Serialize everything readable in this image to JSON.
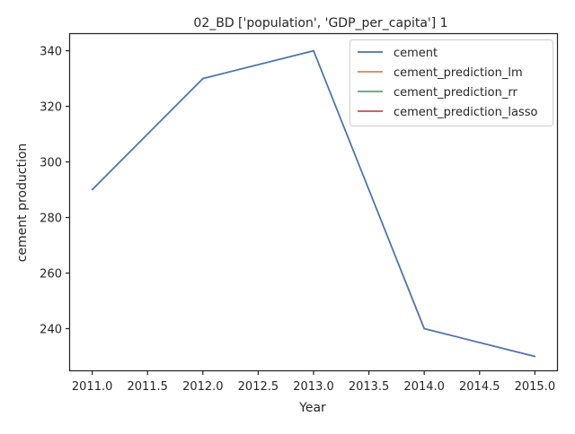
{
  "chart_data": {
    "type": "line",
    "title": "02_BD ['population', 'GDP_per_capita'] 1",
    "xlabel": "Year",
    "ylabel": "cement production",
    "xlim": [
      2010.8,
      2015.2
    ],
    "ylim": [
      225,
      346
    ],
    "x_ticks": [
      2011.0,
      2011.5,
      2012.0,
      2012.5,
      2013.0,
      2013.5,
      2014.0,
      2014.5,
      2015.0
    ],
    "x_tick_labels": [
      "2011.0",
      "2011.5",
      "2012.0",
      "2012.5",
      "2013.0",
      "2013.5",
      "2014.0",
      "2014.5",
      "2015.0"
    ],
    "y_ticks": [
      240,
      260,
      280,
      300,
      320,
      340
    ],
    "y_tick_labels": [
      "240",
      "260",
      "280",
      "300",
      "320",
      "340"
    ],
    "grid": false,
    "legend_position": "top-right",
    "series": [
      {
        "name": "cement",
        "color": "#4c72b0",
        "x": [
          2011,
          2012,
          2013,
          2014,
          2015
        ],
        "values": [
          290,
          330,
          340,
          240,
          230
        ]
      },
      {
        "name": "cement_prediction_lm",
        "color": "#dd8452",
        "x": [],
        "values": []
      },
      {
        "name": "cement_prediction_rr",
        "color": "#55a868",
        "x": [],
        "values": []
      },
      {
        "name": "cement_prediction_lasso",
        "color": "#c44e52",
        "x": [],
        "values": []
      }
    ]
  }
}
